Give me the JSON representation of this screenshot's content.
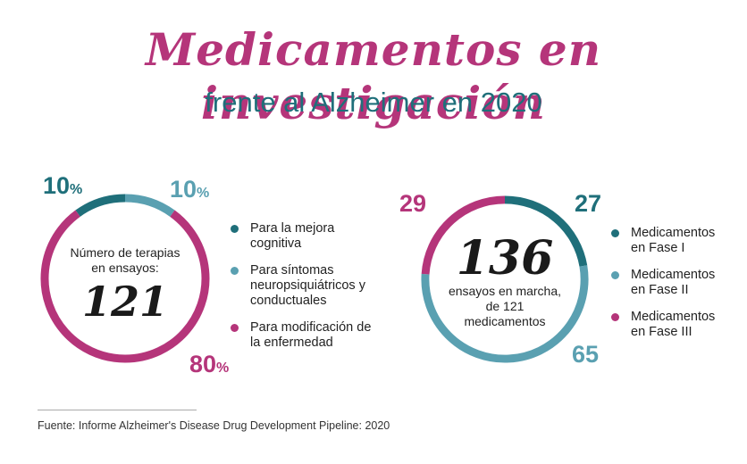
{
  "title": "Medicamentos en investigación",
  "subtitle": "frente al Alzheimer en 2020",
  "colors": {
    "title": "#b5357a",
    "subtitle": "#1f6f7a",
    "dark_teal": "#1f6f7a",
    "light_teal": "#5aa0b1",
    "magenta": "#b5357a"
  },
  "chart_data": [
    {
      "type": "pie",
      "variant": "donut",
      "center_label": "Número de terapias en ensayos:",
      "center_value": "121",
      "categories": [
        "Para la mejora cognitiva",
        "Para síntomas neuropsiquiátricos y conductuales",
        "Para modificación de la enfermedad"
      ],
      "values": [
        10,
        10,
        80
      ],
      "unit": "%",
      "colors": [
        "#1f6f7a",
        "#5aa0b1",
        "#b5357a"
      ],
      "legend_position": "right"
    },
    {
      "type": "pie",
      "variant": "donut",
      "center_value": "136",
      "center_label": "ensayos en marcha, de 121 medicamentos",
      "categories": [
        "Medicamentos en Fase I",
        "Medicamentos en Fase II",
        "Medicamentos en Fase III"
      ],
      "values": [
        27,
        65,
        29
      ],
      "colors": [
        "#1f6f7a",
        "#5aa0b1",
        "#b5357a"
      ],
      "legend_position": "right"
    }
  ],
  "source": "Fuente: Informe Alzheimer's Disease Drug Development Pipeline: 2020"
}
